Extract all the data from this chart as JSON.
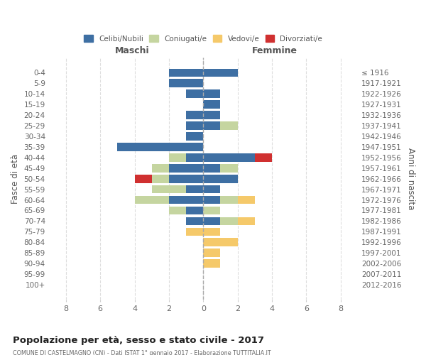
{
  "age_groups": [
    "0-4",
    "5-9",
    "10-14",
    "15-19",
    "20-24",
    "25-29",
    "30-34",
    "35-39",
    "40-44",
    "45-49",
    "50-54",
    "55-59",
    "60-64",
    "65-69",
    "70-74",
    "75-79",
    "80-84",
    "85-89",
    "90-94",
    "95-99",
    "100+"
  ],
  "birth_years": [
    "2012-2016",
    "2007-2011",
    "2002-2006",
    "1997-2001",
    "1992-1996",
    "1987-1991",
    "1982-1986",
    "1977-1981",
    "1972-1976",
    "1967-1971",
    "1962-1966",
    "1957-1961",
    "1952-1956",
    "1947-1951",
    "1942-1946",
    "1937-1941",
    "1932-1936",
    "1927-1931",
    "1922-1926",
    "1917-1921",
    "≤ 1916"
  ],
  "colors": {
    "celibi": "#3e6fa3",
    "coniugati": "#c5d5a0",
    "vedovi": "#f5c96a",
    "divorziati": "#d03030"
  },
  "males": {
    "celibi": [
      2,
      2,
      1,
      0,
      1,
      1,
      1,
      5,
      1,
      2,
      2,
      1,
      2,
      1,
      1,
      0,
      0,
      0,
      0,
      0,
      0
    ],
    "coniugati": [
      0,
      0,
      0,
      0,
      0,
      0,
      0,
      0,
      1,
      1,
      1,
      2,
      2,
      1,
      0,
      0,
      0,
      0,
      0,
      0,
      0
    ],
    "vedovi": [
      0,
      0,
      0,
      0,
      0,
      0,
      0,
      0,
      0,
      0,
      0,
      0,
      0,
      0,
      0,
      1,
      0,
      0,
      0,
      0,
      0
    ],
    "divorziati": [
      0,
      0,
      0,
      0,
      0,
      0,
      0,
      0,
      0,
      0,
      1,
      0,
      0,
      0,
      0,
      0,
      0,
      0,
      0,
      0,
      0
    ]
  },
  "females": {
    "celibi": [
      2,
      0,
      1,
      1,
      1,
      1,
      0,
      0,
      3,
      1,
      2,
      1,
      1,
      0,
      1,
      0,
      0,
      0,
      0,
      0,
      0
    ],
    "coniugati": [
      0,
      0,
      0,
      0,
      0,
      1,
      0,
      0,
      0,
      1,
      0,
      0,
      1,
      1,
      1,
      0,
      0,
      0,
      0,
      0,
      0
    ],
    "vedovi": [
      0,
      0,
      0,
      0,
      0,
      0,
      0,
      0,
      0,
      0,
      0,
      0,
      1,
      0,
      1,
      1,
      2,
      1,
      1,
      0,
      0
    ],
    "divorziati": [
      0,
      0,
      0,
      0,
      0,
      0,
      0,
      0,
      1,
      0,
      0,
      0,
      0,
      0,
      0,
      0,
      0,
      0,
      0,
      0,
      0
    ]
  },
  "xlim": [
    -9,
    9
  ],
  "xticks": [
    -8,
    -6,
    -4,
    -2,
    0,
    2,
    4,
    6,
    8
  ],
  "xticklabels": [
    "8",
    "6",
    "4",
    "2",
    "0",
    "2",
    "4",
    "6",
    "8"
  ],
  "title": "Popolazione per età, sesso e stato civile - 2017",
  "subtitle": "COMUNE DI CASTELMAGNO (CN) - Dati ISTAT 1° gennaio 2017 - Elaborazione TUTTITALIA.IT",
  "ylabel_left": "Fasce di età",
  "ylabel_right": "Anni di nascita",
  "label_maschi": "Maschi",
  "label_femmine": "Femmine",
  "legend_labels": [
    "Celibi/Nubili",
    "Coniugati/e",
    "Vedovi/e",
    "Divorziati/e"
  ],
  "bg_color": "#ffffff",
  "grid_color": "#dddddd"
}
